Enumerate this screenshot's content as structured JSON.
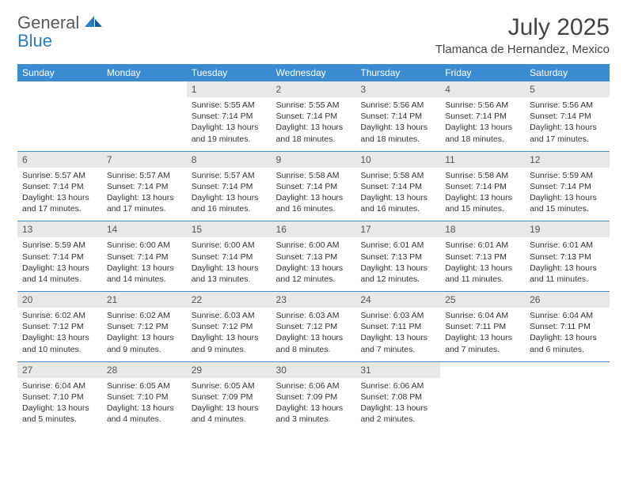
{
  "brand": {
    "part1": "General",
    "part2": "Blue"
  },
  "title": "July 2025",
  "location": "Tlamanca de Hernandez, Mexico",
  "colors": {
    "header_bg": "#3b8bd0",
    "header_text": "#ffffff",
    "daynum_bg": "#e8e8e8",
    "text": "#333333",
    "brand_gray": "#5a5a5a",
    "brand_blue": "#2b7bbf",
    "page_bg": "#ffffff"
  },
  "fonts": {
    "title_size": 30,
    "location_size": 15,
    "dayhead_size": 12,
    "daynum_size": 12,
    "cell_size": 10.5
  },
  "day_names": [
    "Sunday",
    "Monday",
    "Tuesday",
    "Wednesday",
    "Thursday",
    "Friday",
    "Saturday"
  ],
  "weeks": [
    [
      null,
      null,
      {
        "n": "1",
        "sr": "Sunrise: 5:55 AM",
        "ss": "Sunset: 7:14 PM",
        "dl": "Daylight: 13 hours and 19 minutes."
      },
      {
        "n": "2",
        "sr": "Sunrise: 5:55 AM",
        "ss": "Sunset: 7:14 PM",
        "dl": "Daylight: 13 hours and 18 minutes."
      },
      {
        "n": "3",
        "sr": "Sunrise: 5:56 AM",
        "ss": "Sunset: 7:14 PM",
        "dl": "Daylight: 13 hours and 18 minutes."
      },
      {
        "n": "4",
        "sr": "Sunrise: 5:56 AM",
        "ss": "Sunset: 7:14 PM",
        "dl": "Daylight: 13 hours and 18 minutes."
      },
      {
        "n": "5",
        "sr": "Sunrise: 5:56 AM",
        "ss": "Sunset: 7:14 PM",
        "dl": "Daylight: 13 hours and 17 minutes."
      }
    ],
    [
      {
        "n": "6",
        "sr": "Sunrise: 5:57 AM",
        "ss": "Sunset: 7:14 PM",
        "dl": "Daylight: 13 hours and 17 minutes."
      },
      {
        "n": "7",
        "sr": "Sunrise: 5:57 AM",
        "ss": "Sunset: 7:14 PM",
        "dl": "Daylight: 13 hours and 17 minutes."
      },
      {
        "n": "8",
        "sr": "Sunrise: 5:57 AM",
        "ss": "Sunset: 7:14 PM",
        "dl": "Daylight: 13 hours and 16 minutes."
      },
      {
        "n": "9",
        "sr": "Sunrise: 5:58 AM",
        "ss": "Sunset: 7:14 PM",
        "dl": "Daylight: 13 hours and 16 minutes."
      },
      {
        "n": "10",
        "sr": "Sunrise: 5:58 AM",
        "ss": "Sunset: 7:14 PM",
        "dl": "Daylight: 13 hours and 16 minutes."
      },
      {
        "n": "11",
        "sr": "Sunrise: 5:58 AM",
        "ss": "Sunset: 7:14 PM",
        "dl": "Daylight: 13 hours and 15 minutes."
      },
      {
        "n": "12",
        "sr": "Sunrise: 5:59 AM",
        "ss": "Sunset: 7:14 PM",
        "dl": "Daylight: 13 hours and 15 minutes."
      }
    ],
    [
      {
        "n": "13",
        "sr": "Sunrise: 5:59 AM",
        "ss": "Sunset: 7:14 PM",
        "dl": "Daylight: 13 hours and 14 minutes."
      },
      {
        "n": "14",
        "sr": "Sunrise: 6:00 AM",
        "ss": "Sunset: 7:14 PM",
        "dl": "Daylight: 13 hours and 14 minutes."
      },
      {
        "n": "15",
        "sr": "Sunrise: 6:00 AM",
        "ss": "Sunset: 7:14 PM",
        "dl": "Daylight: 13 hours and 13 minutes."
      },
      {
        "n": "16",
        "sr": "Sunrise: 6:00 AM",
        "ss": "Sunset: 7:13 PM",
        "dl": "Daylight: 13 hours and 12 minutes."
      },
      {
        "n": "17",
        "sr": "Sunrise: 6:01 AM",
        "ss": "Sunset: 7:13 PM",
        "dl": "Daylight: 13 hours and 12 minutes."
      },
      {
        "n": "18",
        "sr": "Sunrise: 6:01 AM",
        "ss": "Sunset: 7:13 PM",
        "dl": "Daylight: 13 hours and 11 minutes."
      },
      {
        "n": "19",
        "sr": "Sunrise: 6:01 AM",
        "ss": "Sunset: 7:13 PM",
        "dl": "Daylight: 13 hours and 11 minutes."
      }
    ],
    [
      {
        "n": "20",
        "sr": "Sunrise: 6:02 AM",
        "ss": "Sunset: 7:12 PM",
        "dl": "Daylight: 13 hours and 10 minutes."
      },
      {
        "n": "21",
        "sr": "Sunrise: 6:02 AM",
        "ss": "Sunset: 7:12 PM",
        "dl": "Daylight: 13 hours and 9 minutes."
      },
      {
        "n": "22",
        "sr": "Sunrise: 6:03 AM",
        "ss": "Sunset: 7:12 PM",
        "dl": "Daylight: 13 hours and 9 minutes."
      },
      {
        "n": "23",
        "sr": "Sunrise: 6:03 AM",
        "ss": "Sunset: 7:12 PM",
        "dl": "Daylight: 13 hours and 8 minutes."
      },
      {
        "n": "24",
        "sr": "Sunrise: 6:03 AM",
        "ss": "Sunset: 7:11 PM",
        "dl": "Daylight: 13 hours and 7 minutes."
      },
      {
        "n": "25",
        "sr": "Sunrise: 6:04 AM",
        "ss": "Sunset: 7:11 PM",
        "dl": "Daylight: 13 hours and 7 minutes."
      },
      {
        "n": "26",
        "sr": "Sunrise: 6:04 AM",
        "ss": "Sunset: 7:11 PM",
        "dl": "Daylight: 13 hours and 6 minutes."
      }
    ],
    [
      {
        "n": "27",
        "sr": "Sunrise: 6:04 AM",
        "ss": "Sunset: 7:10 PM",
        "dl": "Daylight: 13 hours and 5 minutes."
      },
      {
        "n": "28",
        "sr": "Sunrise: 6:05 AM",
        "ss": "Sunset: 7:10 PM",
        "dl": "Daylight: 13 hours and 4 minutes."
      },
      {
        "n": "29",
        "sr": "Sunrise: 6:05 AM",
        "ss": "Sunset: 7:09 PM",
        "dl": "Daylight: 13 hours and 4 minutes."
      },
      {
        "n": "30",
        "sr": "Sunrise: 6:06 AM",
        "ss": "Sunset: 7:09 PM",
        "dl": "Daylight: 13 hours and 3 minutes."
      },
      {
        "n": "31",
        "sr": "Sunrise: 6:06 AM",
        "ss": "Sunset: 7:08 PM",
        "dl": "Daylight: 13 hours and 2 minutes."
      },
      null,
      null
    ]
  ]
}
